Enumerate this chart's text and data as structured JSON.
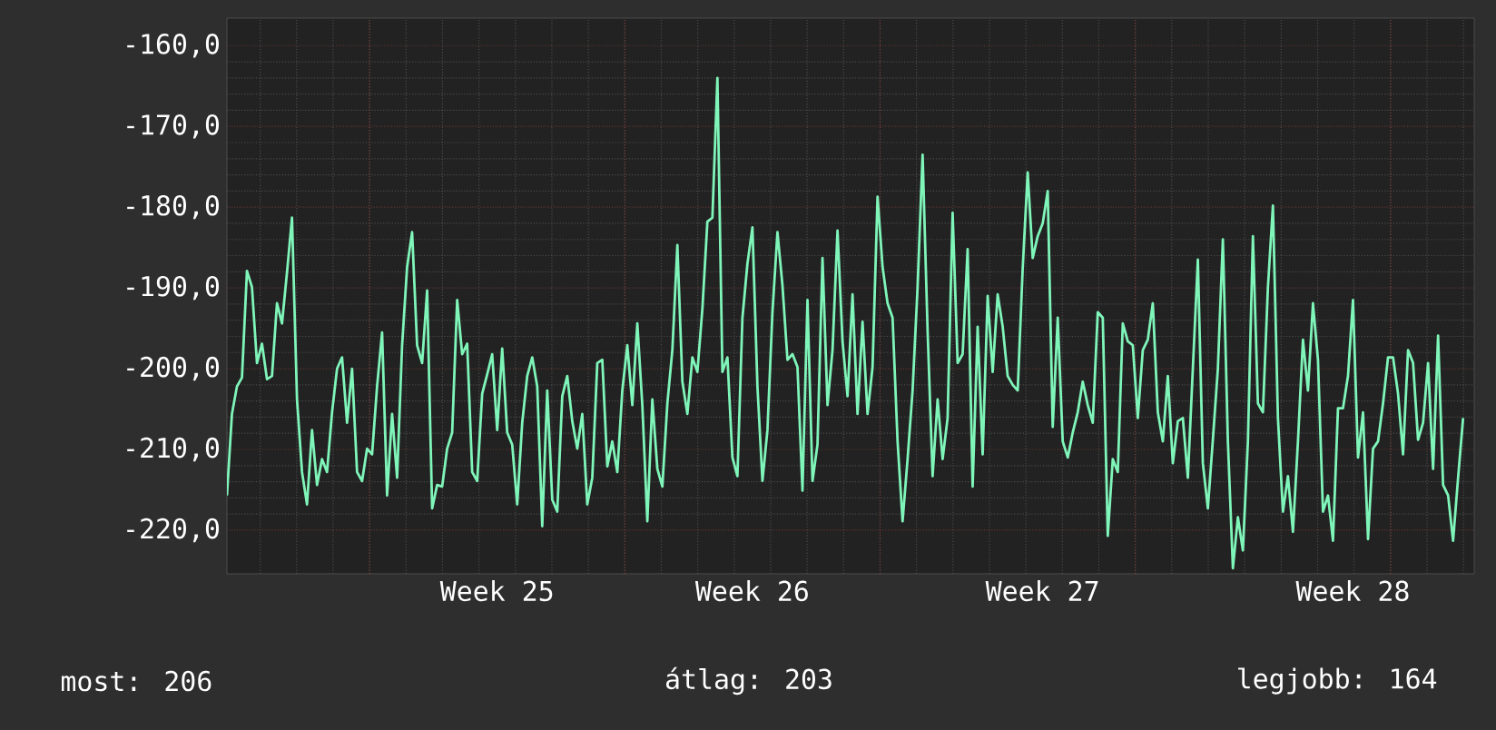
{
  "chart_data": {
    "type": "line",
    "color": "#7ff5b9",
    "line_style": "solid",
    "grid": true,
    "ylim": [
      -225.4,
      -156.6
    ],
    "categories": [
      null,
      null,
      null,
      null,
      null,
      null,
      null,
      null,
      null,
      null,
      null,
      null,
      null,
      null,
      null,
      null,
      null,
      null,
      null,
      null,
      null,
      null,
      null,
      null,
      null,
      null,
      null,
      null,
      null,
      null,
      null,
      null,
      null,
      null,
      null,
      null,
      null,
      null,
      null,
      null,
      null,
      null,
      null,
      null,
      null,
      null,
      null,
      null,
      null,
      null,
      null,
      null,
      null,
      null,
      "Week 25",
      null,
      null,
      null,
      null,
      null,
      null,
      null,
      null,
      null,
      null,
      null,
      null,
      null,
      null,
      null,
      null,
      null,
      null,
      null,
      null,
      null,
      null,
      null,
      null,
      null,
      null,
      null,
      null,
      null,
      null,
      null,
      null,
      null,
      null,
      null,
      null,
      null,
      null,
      null,
      null,
      null,
      null,
      null,
      null,
      null,
      null,
      null,
      null,
      null,
      null,
      "Week 26",
      null,
      null,
      null,
      null,
      null,
      null,
      null,
      null,
      null,
      null,
      null,
      null,
      null,
      null,
      null,
      null,
      null,
      null,
      null,
      null,
      null,
      null,
      null,
      null,
      null,
      null,
      null,
      null,
      null,
      null,
      null,
      null,
      null,
      null,
      null,
      null,
      null,
      null,
      null,
      null,
      null,
      null,
      null,
      null,
      null,
      null,
      null,
      null,
      null,
      null,
      null,
      null,
      null,
      null,
      null,
      null,
      null,
      "Week 27",
      null,
      null,
      null,
      null,
      null,
      null,
      null,
      null,
      null,
      null,
      null,
      null,
      null,
      null,
      null,
      null,
      null,
      null,
      null,
      null,
      null,
      null,
      null,
      null,
      null,
      null,
      null,
      null,
      null,
      null,
      null,
      null,
      null,
      null,
      null,
      null,
      null,
      null,
      null,
      null,
      null,
      null,
      null,
      null,
      null,
      null,
      null,
      null,
      null,
      null,
      null,
      null,
      null,
      null,
      null,
      null,
      null,
      null,
      null,
      null,
      null,
      "Week 28",
      null,
      null,
      null,
      null,
      null,
      null,
      null,
      null,
      null,
      null,
      null,
      null,
      null,
      null,
      null,
      null,
      null,
      null,
      null,
      null,
      null,
      null
    ],
    "yticks": [
      {
        "value": -160,
        "label": "-160,0"
      },
      {
        "value": -170,
        "label": "-170,0"
      },
      {
        "value": -180,
        "label": "-180,0"
      },
      {
        "value": -190,
        "label": "-190,0"
      },
      {
        "value": -200,
        "label": "-200,0"
      },
      {
        "value": -210,
        "label": "-210,0"
      },
      {
        "value": -220,
        "label": "-220,0"
      }
    ],
    "values": [
      -215.7,
      -205.6,
      -202.2,
      -201.1,
      -187.9,
      -189.9,
      -199.3,
      -196.9,
      -201.3,
      -200.9,
      -191.9,
      -194.4,
      -188.1,
      -181.3,
      -203.8,
      -212.8,
      -216.8,
      -207.6,
      -214.4,
      -211.2,
      -212.8,
      -205.4,
      -200.0,
      -198.6,
      -206.7,
      -200.0,
      -212.8,
      -213.9,
      -209.9,
      -210.6,
      -202.2,
      -195.5,
      -215.7,
      -205.6,
      -213.5,
      -197.1,
      -187.4,
      -183.1,
      -197.1,
      -199.3,
      -190.3,
      -217.3,
      -214.4,
      -214.6,
      -209.9,
      -207.9,
      -191.5,
      -198.2,
      -196.9,
      -212.8,
      -213.9,
      -203.1,
      -200.7,
      -198.2,
      -207.6,
      -197.5,
      -207.9,
      -209.4,
      -216.8,
      -206.7,
      -200.9,
      -198.6,
      -202.2,
      -219.5,
      -202.7,
      -216.2,
      -217.7,
      -203.4,
      -200.9,
      -206.5,
      -209.9,
      -205.6,
      -216.8,
      -213.5,
      -199.3,
      -198.9,
      -212.1,
      -209.0,
      -212.8,
      -202.7,
      -197.1,
      -204.5,
      -194.4,
      -204.5,
      -218.9,
      -203.8,
      -212.4,
      -214.6,
      -204.3,
      -197.7,
      -184.7,
      -201.6,
      -205.6,
      -198.6,
      -200.4,
      -192.6,
      -181.8,
      -181.3,
      -164.0,
      -200.4,
      -198.6,
      -211.0,
      -213.3,
      -193.7,
      -187.0,
      -182.5,
      -202.2,
      -213.9,
      -207.6,
      -193.0,
      -183.1,
      -189.7,
      -198.9,
      -198.2,
      -199.8,
      -215.1,
      -191.5,
      -213.9,
      -209.4,
      -186.3,
      -204.5,
      -197.7,
      -182.9,
      -196.6,
      -203.4,
      -190.8,
      -205.6,
      -194.2,
      -205.6,
      -199.8,
      -178.7,
      -187.4,
      -191.9,
      -193.7,
      -209.0,
      -218.9,
      -211.2,
      -202.7,
      -189.9,
      -173.5,
      -195.3,
      -213.3,
      -203.8,
      -211.2,
      -206.1,
      -180.7,
      -199.3,
      -198.2,
      -185.2,
      -214.6,
      -194.8,
      -210.6,
      -191.0,
      -200.4,
      -190.8,
      -194.8,
      -200.9,
      -202.0,
      -202.7,
      -187.6,
      -175.7,
      -186.3,
      -183.6,
      -182.0,
      -178.0,
      -207.2,
      -193.7,
      -209.0,
      -211.0,
      -207.9,
      -205.4,
      -201.6,
      -204.5,
      -206.7,
      -193.0,
      -193.7,
      -220.7,
      -211.2,
      -212.8,
      -194.4,
      -196.6,
      -197.1,
      -206.1,
      -197.7,
      -196.4,
      -191.9,
      -205.4,
      -209.0,
      -200.9,
      -211.7,
      -206.5,
      -206.1,
      -213.5,
      -200.0,
      -186.5,
      -211.7,
      -217.3,
      -208.8,
      -200.0,
      -184.0,
      -209.0,
      -224.7,
      -218.4,
      -222.5,
      -209.0,
      -183.6,
      -204.3,
      -205.4,
      -189.9,
      -179.8,
      -206.1,
      -217.7,
      -213.3,
      -220.2,
      -209.0,
      -196.4,
      -202.7,
      -191.9,
      -198.9,
      -217.7,
      -215.7,
      -221.3,
      -204.9,
      -204.9,
      -200.9,
      -191.5,
      -211.0,
      -205.4,
      -221.1,
      -209.9,
      -209.0,
      -204.3,
      -198.6,
      -198.6,
      -203.1,
      -210.6,
      -197.7,
      -199.3,
      -208.8,
      -206.7,
      -199.3,
      -212.4,
      -195.9,
      -214.4,
      -215.7,
      -221.3,
      -213.5,
      -206.1
    ],
    "annotations": [
      "most: 206",
      "átlag: 203",
      "legjobb: 164"
    ]
  }
}
